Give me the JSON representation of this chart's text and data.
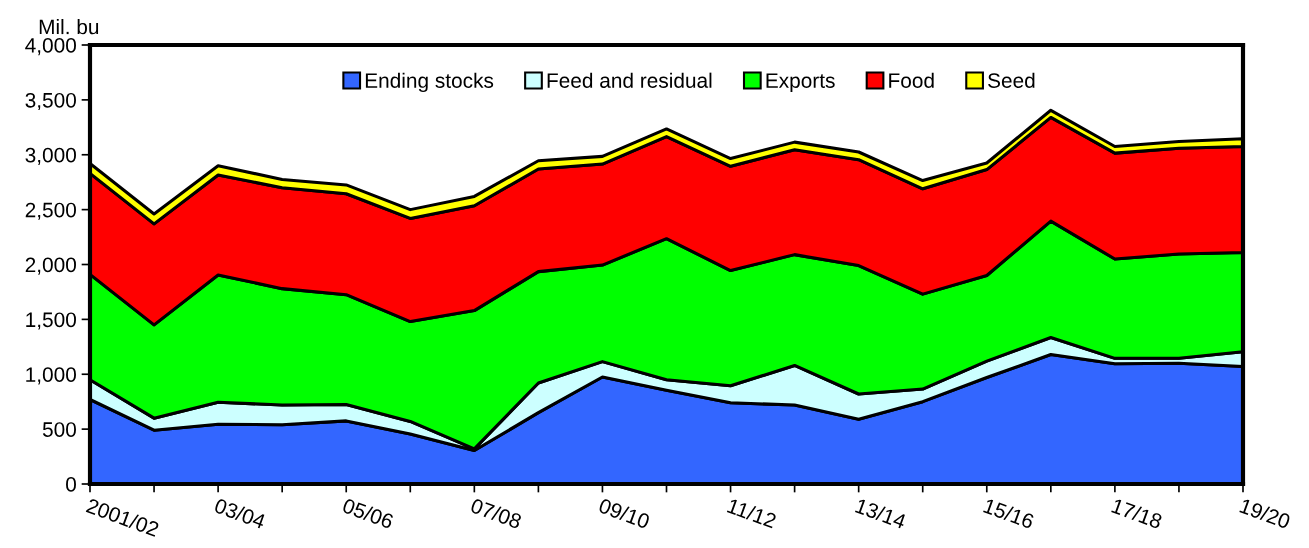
{
  "chart_data": {
    "type": "area",
    "stacked": true,
    "ylabel": "Mil. bu",
    "categories": [
      "2001/02",
      null,
      "03/04",
      null,
      "05/06",
      null,
      "07/08",
      null,
      "09/10",
      null,
      "11/12",
      null,
      "13/14",
      null,
      "15/16",
      null,
      "17/18",
      null,
      "19/20"
    ],
    "series": [
      {
        "name": "Ending stocks",
        "color": "#3366ff",
        "values": [
          770,
          490,
          545,
          540,
          575,
          455,
          305,
          650,
          975,
          855,
          740,
          720,
          590,
          750,
          970,
          1180,
          1095,
          1100,
          1070
        ]
      },
      {
        "name": "Feed and residual",
        "color": "#ccffff",
        "values": [
          180,
          110,
          200,
          180,
          150,
          115,
          15,
          270,
          140,
          95,
          155,
          360,
          230,
          115,
          150,
          155,
          50,
          45,
          135
        ]
      },
      {
        "name": "Exports",
        "color": "#00ff00",
        "values": [
          960,
          850,
          1160,
          1060,
          1000,
          910,
          1260,
          1015,
          880,
          1285,
          1050,
          1010,
          1170,
          865,
          780,
          1060,
          905,
          950,
          905
        ]
      },
      {
        "name": "Food",
        "color": "#ff0000",
        "values": [
          920,
          920,
          910,
          920,
          920,
          940,
          955,
          935,
          920,
          930,
          950,
          955,
          965,
          960,
          965,
          945,
          965,
          965,
          965
        ]
      },
      {
        "name": "Seed",
        "color": "#ffff00",
        "values": [
          90,
          90,
          85,
          75,
          80,
          80,
          85,
          75,
          70,
          70,
          70,
          70,
          70,
          75,
          60,
          65,
          60,
          60,
          70
        ]
      }
    ],
    "ylim": [
      0,
      4000
    ],
    "yticks": [
      {
        "value": 0,
        "label": "0"
      },
      {
        "value": 500,
        "label": "500"
      },
      {
        "value": 1000,
        "label": "1,000"
      },
      {
        "value": 1500,
        "label": "1,500"
      },
      {
        "value": 2000,
        "label": "2,000"
      },
      {
        "value": 2500,
        "label": "2,500"
      },
      {
        "value": 3000,
        "label": "3,000"
      },
      {
        "value": 3500,
        "label": "3,500"
      },
      {
        "value": 4000,
        "label": "4,000"
      }
    ],
    "legend": "top",
    "grid": false
  }
}
